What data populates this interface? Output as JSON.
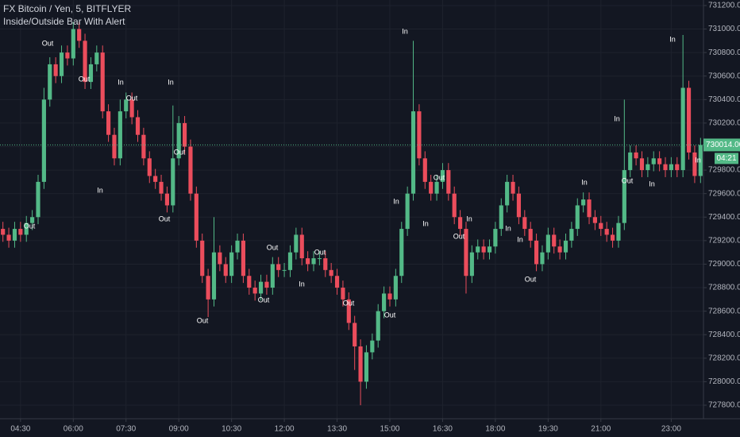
{
  "chart_data": {
    "type": "candlestick",
    "title": "FX Bitcoin / Yen, 5, BITFLYER",
    "subtitle": "Inside/Outside Bar With Alert",
    "categories": [
      null,
      null,
      null,
      "04:30",
      null,
      null,
      null,
      null,
      null,
      null,
      null,
      null,
      "06:00",
      null,
      null,
      null,
      null,
      null,
      null,
      null,
      null,
      "07:30",
      null,
      null,
      null,
      null,
      null,
      null,
      null,
      null,
      "09:00",
      null,
      null,
      null,
      null,
      null,
      null,
      null,
      null,
      "10:30",
      null,
      null,
      null,
      null,
      null,
      null,
      null,
      null,
      "12:00",
      null,
      null,
      null,
      null,
      null,
      null,
      null,
      null,
      "13:30",
      null,
      null,
      null,
      null,
      null,
      null,
      null,
      null,
      "15:00",
      null,
      null,
      null,
      null,
      null,
      null,
      null,
      null,
      "16:30",
      null,
      null,
      null,
      null,
      null,
      null,
      null,
      null,
      "18:00",
      null,
      null,
      null,
      null,
      null,
      null,
      null,
      null,
      "19:30",
      null,
      null,
      null,
      null,
      null,
      null,
      null,
      null,
      "21:00",
      null,
      null,
      null,
      null,
      null,
      null,
      null,
      null,
      null,
      null,
      null,
      "23:00",
      null,
      null,
      null,
      null,
      null
    ],
    "open": [
      729300,
      729250,
      729200,
      729300,
      729250,
      729350,
      729400,
      729700,
      730400,
      730700,
      730600,
      730800,
      730750,
      731000,
      730900,
      730550,
      730700,
      730800,
      730300,
      730100,
      729900,
      730300,
      730400,
      730250,
      730100,
      729900,
      729750,
      729700,
      729600,
      729500,
      729900,
      730200,
      730000,
      729600,
      729200,
      728900,
      728700,
      729100,
      729000,
      728900,
      729100,
      729200,
      728900,
      728800,
      728750,
      728850,
      728800,
      729000,
      728950,
      728950,
      729100,
      729250,
      729050,
      729000,
      729050,
      729050,
      728950,
      728900,
      728800,
      728700,
      728500,
      728300,
      728000,
      728250,
      728350,
      728600,
      728750,
      728700,
      728900,
      729300,
      729600,
      730300,
      729900,
      729700,
      729600,
      729700,
      729800,
      729600,
      729400,
      729300,
      728900,
      729100,
      729150,
      729100,
      729150,
      729300,
      729500,
      729700,
      729600,
      729400,
      729300,
      729200,
      729000,
      729100,
      729250,
      729150,
      729100,
      729200,
      729300,
      729500,
      729550,
      729400,
      729350,
      729300,
      729250,
      729200,
      729350,
      729800,
      729950,
      729900,
      729800,
      729850,
      729900,
      729850,
      729800,
      729850,
      729800,
      730500,
      729950,
      729750
    ],
    "high": [
      729360,
      729310,
      729360,
      729360,
      729410,
      729460,
      729760,
      730500,
      730760,
      730760,
      730860,
      730860,
      731060,
      731060,
      730960,
      730760,
      730860,
      730860,
      730360,
      730160,
      730400,
      730460,
      730460,
      730310,
      730160,
      729960,
      729810,
      729760,
      729660,
      730350,
      730260,
      730260,
      730060,
      729660,
      729260,
      728960,
      729400,
      729160,
      729060,
      729160,
      729260,
      729260,
      728960,
      728860,
      728910,
      728910,
      729060,
      729060,
      729010,
      729160,
      729310,
      729310,
      729110,
      729110,
      729110,
      729110,
      729010,
      728960,
      728860,
      728760,
      728560,
      728360,
      728310,
      728410,
      728660,
      728810,
      728810,
      728960,
      729360,
      729660,
      730900,
      730360,
      729960,
      729760,
      729760,
      729860,
      729860,
      729660,
      729460,
      729360,
      729160,
      729210,
      729210,
      729210,
      729360,
      729560,
      729760,
      729760,
      729660,
      729460,
      729360,
      729260,
      729160,
      729310,
      729310,
      729210,
      729260,
      729360,
      729560,
      729610,
      729610,
      729460,
      729410,
      729360,
      729310,
      729410,
      730400,
      730010,
      730010,
      729960,
      729910,
      729960,
      729960,
      729910,
      729910,
      729910,
      730950,
      730560,
      730010,
      730074
    ],
    "low": [
      729190,
      729140,
      729140,
      729190,
      729190,
      729290,
      729340,
      729640,
      730340,
      730540,
      730540,
      730690,
      730690,
      730840,
      730490,
      730490,
      730640,
      730240,
      730040,
      729840,
      729840,
      730240,
      730190,
      730040,
      729840,
      729690,
      729640,
      729540,
      729440,
      729440,
      729840,
      729940,
      729540,
      729140,
      728840,
      728550,
      728640,
      728940,
      728840,
      728840,
      729040,
      728840,
      728740,
      728690,
      728690,
      728740,
      728740,
      728890,
      728890,
      728890,
      729040,
      728990,
      728940,
      728940,
      728990,
      728890,
      728840,
      728740,
      728640,
      728440,
      728100,
      727800,
      727940,
      728190,
      728290,
      728540,
      728640,
      728640,
      728840,
      729240,
      729540,
      729840,
      729640,
      729540,
      729540,
      729640,
      729540,
      729340,
      729240,
      728750,
      728840,
      729040,
      729040,
      729040,
      729090,
      729240,
      729440,
      729540,
      729340,
      729240,
      729140,
      728940,
      728940,
      729040,
      729090,
      729040,
      729040,
      729140,
      729240,
      729440,
      729340,
      729290,
      729240,
      729190,
      729140,
      729140,
      729290,
      729740,
      729840,
      729740,
      729740,
      729790,
      729790,
      729740,
      729740,
      729740,
      729740,
      729890,
      729690,
      729690
    ],
    "close": [
      729250,
      729200,
      729300,
      729250,
      729350,
      729400,
      729700,
      730400,
      730700,
      730600,
      730800,
      730750,
      731000,
      730900,
      730550,
      730700,
      730800,
      730300,
      730100,
      729900,
      730300,
      730400,
      730250,
      730100,
      729900,
      729750,
      729700,
      729600,
      729500,
      729900,
      730200,
      730000,
      729600,
      729200,
      728900,
      728700,
      729100,
      729000,
      728900,
      729100,
      729200,
      728900,
      728800,
      728750,
      728850,
      728800,
      729000,
      728950,
      728950,
      729100,
      729250,
      729050,
      729000,
      729050,
      729050,
      728950,
      728900,
      728800,
      728700,
      728500,
      728300,
      728000,
      728250,
      728350,
      728600,
      728750,
      728700,
      728900,
      729300,
      729600,
      730300,
      729900,
      729700,
      729600,
      729700,
      729800,
      729600,
      729400,
      729300,
      728900,
      729100,
      729150,
      729100,
      729150,
      729300,
      729500,
      729700,
      729600,
      729400,
      729300,
      729200,
      729000,
      729100,
      729250,
      729150,
      729100,
      729200,
      729300,
      729500,
      729550,
      729400,
      729350,
      729300,
      729250,
      729200,
      729350,
      729800,
      729950,
      729900,
      729800,
      729850,
      729900,
      729850,
      729800,
      729850,
      729800,
      730500,
      729950,
      729750,
      730014
    ],
    "up_color": "#53b987",
    "down_color": "#eb4d5c",
    "ylim": [
      727685,
      731247
    ],
    "yticks": [
      {
        "value": 727800,
        "label": "727800.00"
      },
      {
        "value": 728000,
        "label": "728000.00"
      },
      {
        "value": 728200,
        "label": "728200.00"
      },
      {
        "value": 728400,
        "label": "728400.00"
      },
      {
        "value": 728600,
        "label": "728600.00"
      },
      {
        "value": 728800,
        "label": "728800.00"
      },
      {
        "value": 729000,
        "label": "729000.00"
      },
      {
        "value": 729200,
        "label": "729200.00"
      },
      {
        "value": 729400,
        "label": "729400.00"
      },
      {
        "value": 729600,
        "label": "729600.00"
      },
      {
        "value": 729800,
        "label": "729800.00"
      },
      {
        "value": 730000,
        "label": "730000.00"
      },
      {
        "value": 730200,
        "label": "730200.00"
      },
      {
        "value": 730400,
        "label": "730400.00"
      },
      {
        "value": 730600,
        "label": "730600.00"
      },
      {
        "value": 730800,
        "label": "730800.00"
      },
      {
        "value": 731000,
        "label": "731000.00"
      },
      {
        "value": 731200,
        "label": "731200.00"
      }
    ],
    "grid": true,
    "last_price": {
      "value": 730014,
      "label": "730014.00"
    },
    "countdown": "04:21",
    "annotations": [
      "Out",
      "Out",
      "In",
      "Out",
      "In",
      "Out",
      "In",
      "Out",
      "Out",
      "Out",
      "Out",
      "Out",
      "In",
      "Out",
      "Out",
      "Out",
      "In",
      "In",
      "Out",
      "In",
      "In",
      "Out",
      "In",
      "In",
      "Out",
      "In",
      "In",
      "Out",
      "In",
      "In",
      "In"
    ]
  }
}
